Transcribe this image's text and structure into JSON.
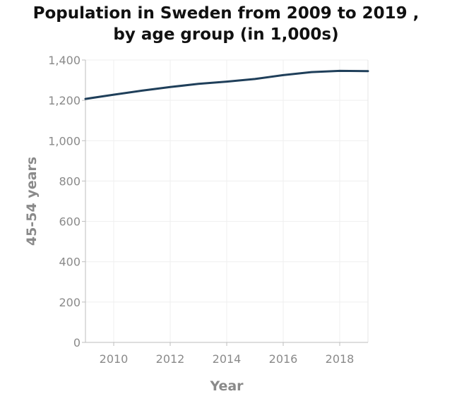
{
  "chart_data": {
    "type": "line",
    "title_lines": [
      "Population in Sweden from 2009 to 2019 ,",
      "by age group (in 1,000s)"
    ],
    "xlabel": "Year",
    "ylabel": "45-54 years",
    "xlim": [
      2009,
      2019
    ],
    "ylim": [
      0,
      1400
    ],
    "xticks": [
      2010,
      2012,
      2014,
      2016,
      2018
    ],
    "xtick_labels": [
      "2010",
      "2012",
      "2014",
      "2016",
      "2018"
    ],
    "yticks": [
      0,
      200,
      400,
      600,
      800,
      1000,
      1200,
      1400
    ],
    "ytick_labels": [
      "0",
      "200",
      "400",
      "600",
      "800",
      "1,000",
      "1,200",
      "1,400"
    ],
    "grid": true,
    "line_color": "#1f3f5a",
    "grid_color": "#efefef",
    "x": [
      2009,
      2010,
      2011,
      2012,
      2013,
      2014,
      2015,
      2016,
      2017,
      2018,
      2019
    ],
    "y": [
      1207,
      1228,
      1248,
      1266,
      1282,
      1293,
      1306,
      1325,
      1340,
      1346,
      1345
    ]
  }
}
